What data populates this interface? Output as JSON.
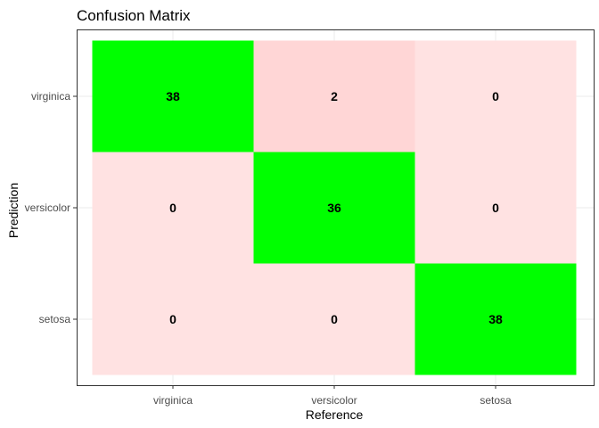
{
  "chart_data": {
    "type": "heatmap",
    "title": "Confusion Matrix",
    "xlabel": "Reference",
    "ylabel": "Prediction",
    "x_categories": [
      "virginica",
      "versicolor",
      "setosa"
    ],
    "y_categories": [
      "virginica",
      "versicolor",
      "setosa"
    ],
    "values": [
      [
        38,
        2,
        0
      ],
      [
        0,
        36,
        0
      ],
      [
        0,
        0,
        38
      ]
    ],
    "colors": {
      "correct": "#00ff00",
      "misclassified": "#ffd6d6",
      "zero": "#ffe2e2",
      "panel_border": "#333333",
      "grid": "#ebebeb"
    },
    "grid": true,
    "legend": "none"
  }
}
